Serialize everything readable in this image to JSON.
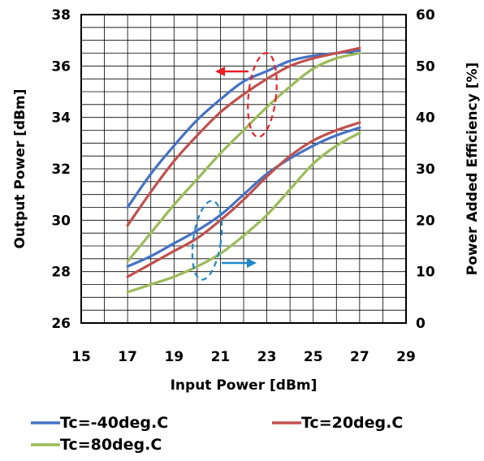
{
  "chart_data": {
    "type": "line",
    "title": "",
    "xlabel": "Input Power [dBm]",
    "ylabel": "Output Power [dBm]",
    "y2label": "Power Added Efficiency [%]",
    "xlim": [
      15,
      29
    ],
    "ylim": [
      26,
      38
    ],
    "y2lim": [
      0,
      60
    ],
    "x_ticks": [
      "15",
      "17",
      "19",
      "21",
      "23",
      "25",
      "27",
      "29"
    ],
    "y_ticks": [
      "26",
      "28",
      "30",
      "32",
      "34",
      "36",
      "38"
    ],
    "y2_ticks": [
      "0",
      "10",
      "20",
      "30",
      "40",
      "50",
      "60"
    ],
    "grid": true,
    "legend_position": "bottom",
    "colors": {
      "blue": "#4472C4",
      "red": "#C0504D",
      "green": "#9BBB59",
      "annotation_red": "#E8202A",
      "annotation_blue": "#1E88C8"
    },
    "series": [
      {
        "name": "Tc=-40deg.C",
        "axis": "left",
        "color": "#4472C4",
        "x": [
          17,
          18,
          19,
          20,
          21,
          22,
          23,
          24,
          25,
          26,
          27
        ],
        "values": [
          30.5,
          31.8,
          32.9,
          33.9,
          34.7,
          35.4,
          35.8,
          36.2,
          36.4,
          36.5,
          36.6
        ]
      },
      {
        "name": "Tc=20deg.C",
        "axis": "left",
        "color": "#C0504D",
        "x": [
          17,
          18,
          19,
          20,
          21,
          22,
          23,
          24,
          25,
          26,
          27
        ],
        "values": [
          29.8,
          31.1,
          32.3,
          33.3,
          34.2,
          34.9,
          35.5,
          36.0,
          36.3,
          36.5,
          36.7
        ]
      },
      {
        "name": "Tc=80deg.C",
        "axis": "left",
        "color": "#9BBB59",
        "x": [
          17,
          18,
          19,
          20,
          21,
          22,
          23,
          24,
          25,
          26,
          27
        ],
        "values": [
          28.4,
          29.5,
          30.6,
          31.6,
          32.6,
          33.5,
          34.4,
          35.2,
          35.9,
          36.3,
          36.5
        ]
      },
      {
        "name": "Tc=-40deg.C",
        "axis": "right",
        "color": "#4472C4",
        "x": [
          17,
          18,
          19,
          20,
          21,
          22,
          23,
          24,
          25,
          26,
          27
        ],
        "values": [
          11,
          13,
          15.5,
          18,
          21,
          25,
          29,
          32,
          34.5,
          36.5,
          38
        ]
      },
      {
        "name": "Tc=20deg.C",
        "axis": "right",
        "color": "#C0504D",
        "x": [
          17,
          18,
          19,
          20,
          21,
          22,
          23,
          24,
          25,
          26,
          27
        ],
        "values": [
          9,
          11.5,
          14,
          16.5,
          20,
          24,
          28.5,
          32.5,
          35.5,
          37.5,
          39
        ]
      },
      {
        "name": "Tc=80deg.C",
        "axis": "right",
        "color": "#9BBB59",
        "x": [
          17,
          18,
          19,
          20,
          21,
          22,
          23,
          24,
          25,
          26,
          27
        ],
        "values": [
          6,
          7.5,
          9,
          11,
          13.5,
          17,
          21,
          26,
          31,
          34.5,
          37
        ]
      }
    ],
    "annotations": [
      {
        "type": "dashed-ellipse-with-arrow",
        "color": "#E8202A",
        "points_to": "left-axis"
      },
      {
        "type": "dashed-ellipse-with-arrow",
        "color": "#1E88C8",
        "points_to": "right-axis"
      }
    ],
    "legend": [
      {
        "label": "Tc=-40deg.C",
        "color": "#4472C4"
      },
      {
        "label": "Tc=20deg.C",
        "color": "#C0504D"
      },
      {
        "label": "Tc=80deg.C",
        "color": "#9BBB59"
      }
    ]
  }
}
